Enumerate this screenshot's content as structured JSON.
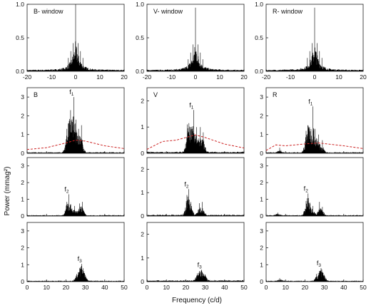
{
  "y_axis_label": "Power (mmag²)",
  "x_axis_label": "Frequency (c/d)",
  "chart_data": [
    {
      "type": "line",
      "panel": "window-B",
      "label": "B- window",
      "xlim": [
        -20,
        20
      ],
      "ylim": [
        0,
        1.0
      ],
      "x_ticks": [
        -20,
        -10,
        0,
        10,
        20
      ],
      "y_ticks": [
        0.0,
        0.5,
        1.0
      ],
      "tick_labels_y": [
        "0.0",
        "0.5",
        "1.0"
      ],
      "series": [
        {
          "kind": "spectral-window",
          "peak_x": 0,
          "peak_y": 1.0,
          "sidelobes": [
            [
              -1,
              0.42
            ],
            [
              1,
              0.42
            ],
            [
              -2,
              0.3
            ],
            [
              2,
              0.3
            ],
            [
              -3,
              0.2
            ],
            [
              3,
              0.2
            ]
          ]
        }
      ]
    },
    {
      "type": "line",
      "panel": "window-V",
      "label": "V- window",
      "xlim": [
        -20,
        20
      ],
      "ylim": [
        0,
        1.0
      ],
      "x_ticks": [
        -20,
        -10,
        0,
        10,
        20
      ],
      "y_ticks": [
        0.0,
        0.5,
        1.0
      ],
      "tick_labels_y": [
        "0.0",
        "0.5",
        "1.0"
      ],
      "series": [
        {
          "kind": "spectral-window",
          "peak_x": 0,
          "peak_y": 0.95,
          "sidelobes": [
            [
              -1,
              0.4
            ],
            [
              1,
              0.4
            ],
            [
              -2,
              0.28
            ],
            [
              2,
              0.28
            ],
            [
              -3,
              0.18
            ],
            [
              3,
              0.18
            ]
          ]
        }
      ]
    },
    {
      "type": "line",
      "panel": "window-R",
      "label": "R- window",
      "xlim": [
        -20,
        20
      ],
      "ylim": [
        0,
        1.0
      ],
      "x_ticks": [
        -20,
        -10,
        0,
        10,
        20
      ],
      "y_ticks": [
        0.0,
        0.5,
        1.0
      ],
      "tick_labels_y": [
        "0.0",
        "0.5",
        "1.0"
      ],
      "series": [
        {
          "kind": "spectral-window",
          "peak_x": 0,
          "peak_y": 0.95,
          "sidelobes": [
            [
              -1,
              0.42
            ],
            [
              1,
              0.42
            ],
            [
              -2,
              0.3
            ],
            [
              2,
              0.3
            ],
            [
              -3,
              0.2
            ],
            [
              3,
              0.2
            ]
          ]
        }
      ]
    },
    {
      "type": "line",
      "panel": "B-1",
      "label": "B",
      "peak_label": "f1",
      "xlim": [
        0,
        50
      ],
      "ylim": [
        0,
        3.5
      ],
      "y_ticks": [
        0,
        1,
        2,
        3
      ],
      "series": [
        {
          "kind": "periodogram",
          "peaks": [
            [
              20.5,
              1.3
            ],
            [
              21.5,
              1.6
            ],
            [
              22.4,
              2.3
            ],
            [
              24,
              3.0
            ],
            [
              25.2,
              1.8
            ],
            [
              26.5,
              1.3
            ],
            [
              28,
              1.5
            ]
          ]
        }
      ],
      "threshold": [
        [
          0,
          0.2
        ],
        [
          10,
          0.3
        ],
        [
          20,
          0.55
        ],
        [
          25,
          0.7
        ],
        [
          30,
          0.65
        ],
        [
          40,
          0.4
        ],
        [
          50,
          0.25
        ]
      ]
    },
    {
      "type": "line",
      "panel": "V-1",
      "label": "V",
      "peak_label": "f1",
      "xlim": [
        0,
        50
      ],
      "ylim": [
        0,
        2.5
      ],
      "y_ticks": [
        0,
        1,
        2
      ],
      "series": [
        {
          "kind": "periodogram",
          "peaks": [
            [
              20.8,
              1.1
            ],
            [
              21.6,
              1.15
            ],
            [
              22.5,
              1.0
            ],
            [
              24,
              1.65
            ],
            [
              25.5,
              1.0
            ],
            [
              27.5,
              1.0
            ],
            [
              29,
              0.8
            ]
          ]
        }
      ],
      "threshold": [
        [
          0,
          0.15
        ],
        [
          8,
          0.45
        ],
        [
          15,
          0.5
        ],
        [
          25,
          0.7
        ],
        [
          30,
          0.6
        ],
        [
          40,
          0.35
        ],
        [
          50,
          0.2
        ]
      ]
    },
    {
      "type": "line",
      "panel": "R-1",
      "label": "R",
      "peak_label": "f1",
      "xlim": [
        0,
        50
      ],
      "ylim": [
        0,
        3.5
      ],
      "y_ticks": [
        0,
        1,
        2,
        3
      ],
      "series": [
        {
          "kind": "periodogram",
          "peaks": [
            [
              20.6,
              1.2
            ],
            [
              21.5,
              1.5
            ],
            [
              22.4,
              1.4
            ],
            [
              24,
              2.5
            ],
            [
              25.3,
              1.3
            ],
            [
              27,
              1.0
            ],
            [
              29,
              0.7
            ],
            [
              7,
              0.3
            ]
          ]
        }
      ],
      "threshold": [
        [
          0,
          0.15
        ],
        [
          5,
          0.45
        ],
        [
          10,
          0.4
        ],
        [
          20,
          0.5
        ],
        [
          27,
          0.55
        ],
        [
          40,
          0.4
        ],
        [
          50,
          0.25
        ]
      ]
    },
    {
      "type": "line",
      "panel": "B-2",
      "peak_label": "f2",
      "xlim": [
        0,
        50
      ],
      "ylim": [
        0,
        3.5
      ],
      "y_ticks": [
        0,
        1,
        2,
        3
      ],
      "series": [
        {
          "kind": "periodogram",
          "peaks": [
            [
              20.5,
              0.85
            ],
            [
              21.5,
              1.3
            ],
            [
              22.5,
              0.7
            ],
            [
              24.5,
              0.6
            ],
            [
              27,
              0.75
            ],
            [
              28.5,
              0.85
            ]
          ]
        }
      ]
    },
    {
      "type": "line",
      "panel": "V-2",
      "peak_label": "f2",
      "xlim": [
        0,
        50
      ],
      "ylim": [
        0,
        2.5
      ],
      "y_ticks": [
        0,
        1,
        2
      ],
      "series": [
        {
          "kind": "periodogram",
          "peaks": [
            [
              20.6,
              0.9
            ],
            [
              21.5,
              1.15
            ],
            [
              22.6,
              0.6
            ],
            [
              27,
              0.55
            ],
            [
              28.5,
              0.6
            ]
          ]
        }
      ]
    },
    {
      "type": "line",
      "panel": "R-2",
      "peak_label": "f2",
      "xlim": [
        0,
        50
      ],
      "ylim": [
        0,
        3.5
      ],
      "y_ticks": [
        0,
        1,
        2,
        3
      ],
      "series": [
        {
          "kind": "periodogram",
          "peaks": [
            [
              20.6,
              0.9
            ],
            [
              21.6,
              1.35
            ],
            [
              22.5,
              0.8
            ],
            [
              24,
              0.6
            ],
            [
              27.5,
              0.85
            ],
            [
              29,
              0.55
            ],
            [
              6,
              0.2
            ]
          ]
        }
      ]
    },
    {
      "type": "line",
      "panel": "B-3",
      "peak_label": "f3",
      "xlim": [
        0,
        50
      ],
      "ylim": [
        0,
        3.5
      ],
      "y_ticks": [
        0,
        1,
        2,
        3
      ],
      "x_ticks": [
        0,
        10,
        20,
        30,
        40,
        50
      ],
      "series": [
        {
          "kind": "periodogram",
          "peaks": [
            [
              25.5,
              0.45
            ],
            [
              26.5,
              0.55
            ],
            [
              27.5,
              0.7
            ],
            [
              28.2,
              1.05
            ],
            [
              29,
              0.5
            ],
            [
              30,
              0.4
            ]
          ]
        }
      ]
    },
    {
      "type": "line",
      "panel": "V-3",
      "peak_label": "f3",
      "xlim": [
        0,
        50
      ],
      "ylim": [
        0,
        2.5
      ],
      "y_ticks": [
        0,
        1,
        2
      ],
      "x_ticks": [
        0,
        10,
        20,
        30,
        40,
        50
      ],
      "series": [
        {
          "kind": "periodogram",
          "peaks": [
            [
              26,
              0.35
            ],
            [
              27,
              0.45
            ],
            [
              28.2,
              0.5
            ],
            [
              29,
              0.35
            ],
            [
              30,
              0.3
            ]
          ]
        }
      ]
    },
    {
      "type": "line",
      "panel": "R-3",
      "peak_label": "f3",
      "xlim": [
        0,
        50
      ],
      "ylim": [
        0,
        3.5
      ],
      "y_ticks": [
        0,
        1,
        2,
        3
      ],
      "x_ticks": [
        0,
        10,
        20,
        30,
        40,
        50
      ],
      "series": [
        {
          "kind": "periodogram",
          "peaks": [
            [
              26,
              0.45
            ],
            [
              27.5,
              0.6
            ],
            [
              28.3,
              0.8
            ],
            [
              29.2,
              0.5
            ],
            [
              30,
              0.4
            ],
            [
              7,
              0.2
            ]
          ]
        }
      ]
    }
  ],
  "colors": {
    "signal": "#000000",
    "threshold": "#cc2222",
    "axis": "#222222"
  }
}
